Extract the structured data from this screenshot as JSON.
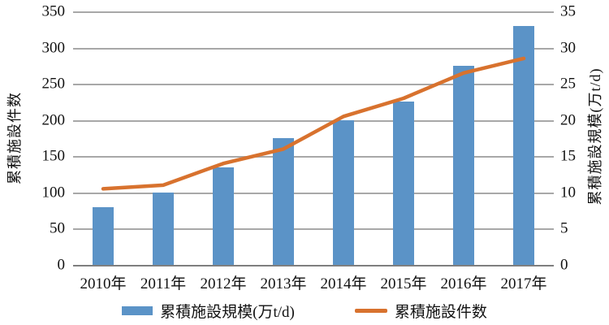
{
  "chart_data": {
    "type": "bar",
    "subtype": "combo-bar-line-dual-axis",
    "categories": [
      "2010年",
      "2011年",
      "2012年",
      "2013年",
      "2014年",
      "2015年",
      "2016年",
      "2017年"
    ],
    "series": [
      {
        "name": "累積施設規模(万t/d)",
        "type": "bar",
        "axis": "right",
        "color": "#5B93C7",
        "values": [
          8,
          10,
          13.5,
          17.5,
          20,
          22.5,
          27.5,
          33
        ]
      },
      {
        "name": "累積施設件数",
        "type": "line",
        "axis": "left",
        "color": "#D8722E",
        "values": [
          105,
          110,
          140,
          160,
          205,
          230,
          265,
          285
        ]
      }
    ],
    "left_axis": {
      "title": "累積施設件数",
      "min": 0,
      "max": 350,
      "step": 50,
      "ticks": [
        0,
        50,
        100,
        150,
        200,
        250,
        300,
        350
      ]
    },
    "right_axis": {
      "title": "累積施設規模(万t/d)",
      "min": 0,
      "max": 35,
      "step": 5,
      "ticks": [
        0,
        5,
        10,
        15,
        20,
        25,
        30,
        35
      ]
    },
    "grid": true,
    "legend_position": "bottom",
    "title": ""
  },
  "colors": {
    "bar": "#5B93C7",
    "line": "#D8722E",
    "gridline": "#A8A8A8",
    "baseline": "#7F7F7F",
    "text": "#111111",
    "background": "#FFFFFF"
  }
}
